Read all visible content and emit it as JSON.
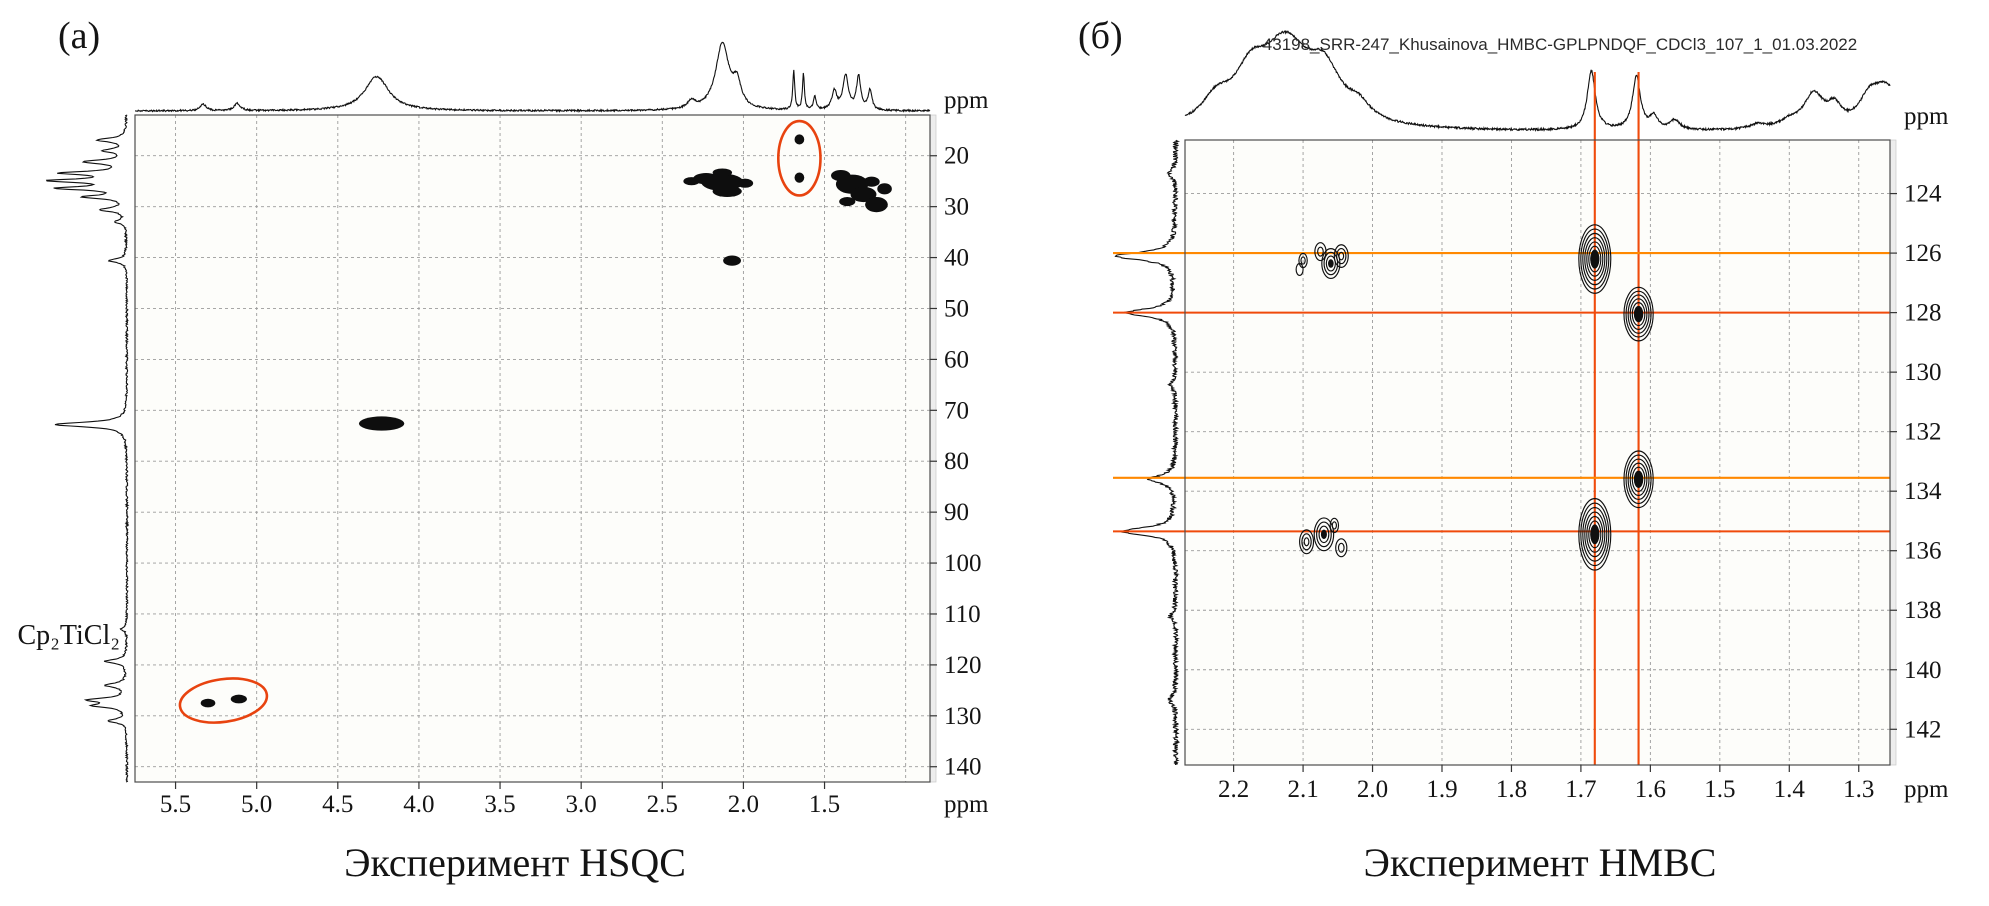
{
  "figure_type": "2D NMR spectra figure (two panels)",
  "accent_color": "#e8430f",
  "chart_data": [
    {
      "type": "scatter",
      "subtype": "2D-NMR-HSQC-contour-map",
      "panel_label": "(а)",
      "title": "Эксперимент HSQC",
      "unit": "ppm",
      "x_axis_unit": "ppm",
      "y_axis_unit": "ppm",
      "grid": true,
      "xlim": [
        5.75,
        0.85
      ],
      "ylim": [
        12,
        143
      ],
      "x_ticks": [
        "5.5",
        "5.0",
        "4.5",
        "4.0",
        "3.5",
        "3.0",
        "2.5",
        "2.0",
        "1.5"
      ],
      "x_grid_extra": [
        1.0
      ],
      "y_ticks": [
        "20",
        "30",
        "40",
        "50",
        "60",
        "70",
        "80",
        "90",
        "100",
        "110",
        "120",
        "130",
        "140"
      ],
      "annotations": [
        {
          "text": "Cp₂TiCl₂",
          "y_ppm": 116
        }
      ],
      "peaks": [
        {
          "x": 2.13,
          "y": 25.2,
          "rx": 0.13,
          "ry": 1.7
        },
        {
          "x": 2.1,
          "y": 27.0,
          "rx": 0.09,
          "ry": 1.1
        },
        {
          "x": 2.23,
          "y": 24.5,
          "rx": 0.08,
          "ry": 1.1
        },
        {
          "x": 2.32,
          "y": 25.0,
          "rx": 0.05,
          "ry": 0.8
        },
        {
          "x": 1.99,
          "y": 25.4,
          "rx": 0.05,
          "ry": 0.9
        },
        {
          "x": 2.13,
          "y": 23.3,
          "rx": 0.06,
          "ry": 0.8
        },
        {
          "x": 2.07,
          "y": 40.6,
          "rx": 0.055,
          "ry": 1.0
        },
        {
          "x": 1.33,
          "y": 25.6,
          "rx": 0.1,
          "ry": 1.9
        },
        {
          "x": 1.26,
          "y": 27.6,
          "rx": 0.08,
          "ry": 1.5
        },
        {
          "x": 1.4,
          "y": 23.9,
          "rx": 0.06,
          "ry": 1.1
        },
        {
          "x": 1.18,
          "y": 29.6,
          "rx": 0.07,
          "ry": 1.5
        },
        {
          "x": 1.21,
          "y": 25.1,
          "rx": 0.05,
          "ry": 1.0
        },
        {
          "x": 1.36,
          "y": 29.0,
          "rx": 0.05,
          "ry": 0.9
        },
        {
          "x": 1.13,
          "y": 26.5,
          "rx": 0.045,
          "ry": 1.1
        },
        {
          "x": 4.23,
          "y": 72.6,
          "rx": 0.14,
          "ry": 1.4
        },
        {
          "x": 5.3,
          "y": 127.5,
          "rx": 0.045,
          "ry": 0.85
        },
        {
          "x": 5.11,
          "y": 126.7,
          "rx": 0.05,
          "ry": 0.85
        },
        {
          "x": 1.655,
          "y": 16.8,
          "rx": 0.03,
          "ry": 1.0
        },
        {
          "x": 1.655,
          "y": 24.3,
          "rx": 0.03,
          "ry": 1.0
        }
      ],
      "highlight_ellipses": [
        {
          "cx": 1.655,
          "cy": 20.5,
          "rx": 0.13,
          "ry": 7.3,
          "rot": 0,
          "color": "#e8430f"
        },
        {
          "cx": 5.205,
          "cy": 127.0,
          "rx": 0.27,
          "ry": 4.2,
          "rot": -8,
          "color": "#e8430f"
        }
      ],
      "trace_top": {
        "noise": 0.8,
        "peaks": [
          [
            5.33,
            0.1,
            0.022
          ],
          [
            5.12,
            0.11,
            0.022
          ],
          [
            4.26,
            0.52,
            0.09
          ],
          [
            2.32,
            0.12,
            0.03
          ],
          [
            2.13,
            1.0,
            0.05
          ],
          [
            2.04,
            0.35,
            0.03
          ],
          [
            1.69,
            0.6,
            0.007
          ],
          [
            1.63,
            0.54,
            0.007
          ],
          [
            1.56,
            0.2,
            0.01
          ],
          [
            1.44,
            0.28,
            0.018
          ],
          [
            1.37,
            0.52,
            0.02
          ],
          [
            1.29,
            0.5,
            0.016
          ],
          [
            1.22,
            0.3,
            0.014
          ]
        ]
      },
      "trace_left": {
        "noise": 1.0,
        "peaks": [
          [
            16.9,
            0.4,
            0.45
          ],
          [
            19.0,
            0.3,
            0.4
          ],
          [
            21.2,
            0.55,
            0.45
          ],
          [
            23.4,
            0.85,
            0.4
          ],
          [
            24.9,
            1.0,
            0.4
          ],
          [
            26.4,
            0.9,
            0.4
          ],
          [
            28.1,
            0.55,
            0.4
          ],
          [
            30.6,
            0.35,
            0.45
          ],
          [
            33.0,
            0.15,
            0.4
          ],
          [
            40.6,
            0.25,
            0.45
          ],
          [
            72.8,
            1.0,
            0.55
          ],
          [
            113.0,
            0.08,
            0.4
          ],
          [
            119.3,
            0.3,
            0.45
          ],
          [
            124.0,
            0.3,
            0.45
          ],
          [
            126.9,
            0.5,
            0.45
          ],
          [
            128.0,
            0.42,
            0.45
          ],
          [
            131.0,
            0.25,
            0.45
          ]
        ]
      }
    },
    {
      "type": "scatter",
      "subtype": "2D-NMR-HMBC-contour-map",
      "panel_label": "(б)",
      "title": "Эксперимент HMBC",
      "header": "43198_SRR-247_Khusainova_HMBC-GPLPNDQF_CDCl3_107_1_01.03.2022",
      "unit": "ppm",
      "x_axis_unit": "ppm",
      "y_axis_unit": "ppm",
      "grid": true,
      "xlim": [
        2.27,
        1.255
      ],
      "ylim": [
        122.2,
        143.2
      ],
      "x_ticks": [
        "2.2",
        "2.1",
        "2.0",
        "1.9",
        "1.8",
        "1.7",
        "1.6",
        "1.5",
        "1.4",
        "1.3"
      ],
      "y_ticks": [
        "124",
        "126",
        "128",
        "130",
        "132",
        "134",
        "136",
        "138",
        "140",
        "142"
      ],
      "crosshairs": {
        "vlines": [
          {
            "x": 1.68,
            "color": "#ef4b0c"
          },
          {
            "x": 1.617,
            "color": "#ef4b0c"
          }
        ],
        "hlines": [
          {
            "y": 126.0,
            "color": "#ff8800"
          },
          {
            "y": 128.0,
            "color": "#f04a0a"
          },
          {
            "y": 133.55,
            "color": "#ff8800"
          },
          {
            "y": 135.35,
            "color": "#f04a0a"
          }
        ]
      },
      "peaks": [
        {
          "x": 1.68,
          "y": 126.2,
          "rx": 0.023,
          "ry": 1.15,
          "levels": 8
        },
        {
          "x": 1.617,
          "y": 128.05,
          "rx": 0.021,
          "ry": 0.9,
          "levels": 7
        },
        {
          "x": 1.617,
          "y": 133.6,
          "rx": 0.021,
          "ry": 0.95,
          "levels": 7
        },
        {
          "x": 1.68,
          "y": 135.45,
          "rx": 0.023,
          "ry": 1.2,
          "levels": 8
        },
        {
          "x": 2.06,
          "y": 126.35,
          "rx": 0.013,
          "ry": 0.5,
          "levels": 4
        },
        {
          "x": 2.045,
          "y": 126.1,
          "rx": 0.01,
          "ry": 0.38,
          "levels": 3
        },
        {
          "x": 2.075,
          "y": 125.95,
          "rx": 0.008,
          "ry": 0.3,
          "levels": 2
        },
        {
          "x": 2.1,
          "y": 126.25,
          "rx": 0.006,
          "ry": 0.24,
          "levels": 2
        },
        {
          "x": 2.105,
          "y": 126.55,
          "rx": 0.005,
          "ry": 0.2,
          "levels": 1
        },
        {
          "x": 2.07,
          "y": 135.45,
          "rx": 0.014,
          "ry": 0.55,
          "levels": 4
        },
        {
          "x": 2.095,
          "y": 135.7,
          "rx": 0.01,
          "ry": 0.4,
          "levels": 3
        },
        {
          "x": 2.045,
          "y": 135.9,
          "rx": 0.008,
          "ry": 0.3,
          "levels": 2
        },
        {
          "x": 2.055,
          "y": 135.15,
          "rx": 0.006,
          "ry": 0.24,
          "levels": 2
        }
      ],
      "trace_top": {
        "noise": 1.0,
        "peaks": [
          [
            2.225,
            0.28,
            0.025
          ],
          [
            2.175,
            0.55,
            0.03
          ],
          [
            2.125,
            0.95,
            0.04
          ],
          [
            2.07,
            0.6,
            0.03
          ],
          [
            2.02,
            0.18,
            0.02
          ],
          [
            1.685,
            0.74,
            0.007
          ],
          [
            1.62,
            0.66,
            0.007
          ],
          [
            1.595,
            0.16,
            0.007
          ],
          [
            1.565,
            0.12,
            0.009
          ],
          [
            1.445,
            0.06,
            0.015
          ],
          [
            1.4,
            0.08,
            0.015
          ],
          [
            1.365,
            0.42,
            0.018
          ],
          [
            1.335,
            0.22,
            0.012
          ],
          [
            1.285,
            0.28,
            0.018
          ],
          [
            1.26,
            0.5,
            0.025
          ]
        ]
      },
      "trace_left": {
        "noise": 2.4,
        "peaks": [
          [
            123.3,
            0.12,
            0.15
          ],
          [
            126.1,
            1.0,
            0.16
          ],
          [
            128.0,
            0.82,
            0.16
          ],
          [
            130.4,
            0.1,
            0.15
          ],
          [
            133.6,
            0.45,
            0.16
          ],
          [
            135.35,
            0.88,
            0.16
          ],
          [
            138.2,
            0.1,
            0.15
          ],
          [
            141.0,
            0.12,
            0.15
          ]
        ]
      }
    }
  ]
}
